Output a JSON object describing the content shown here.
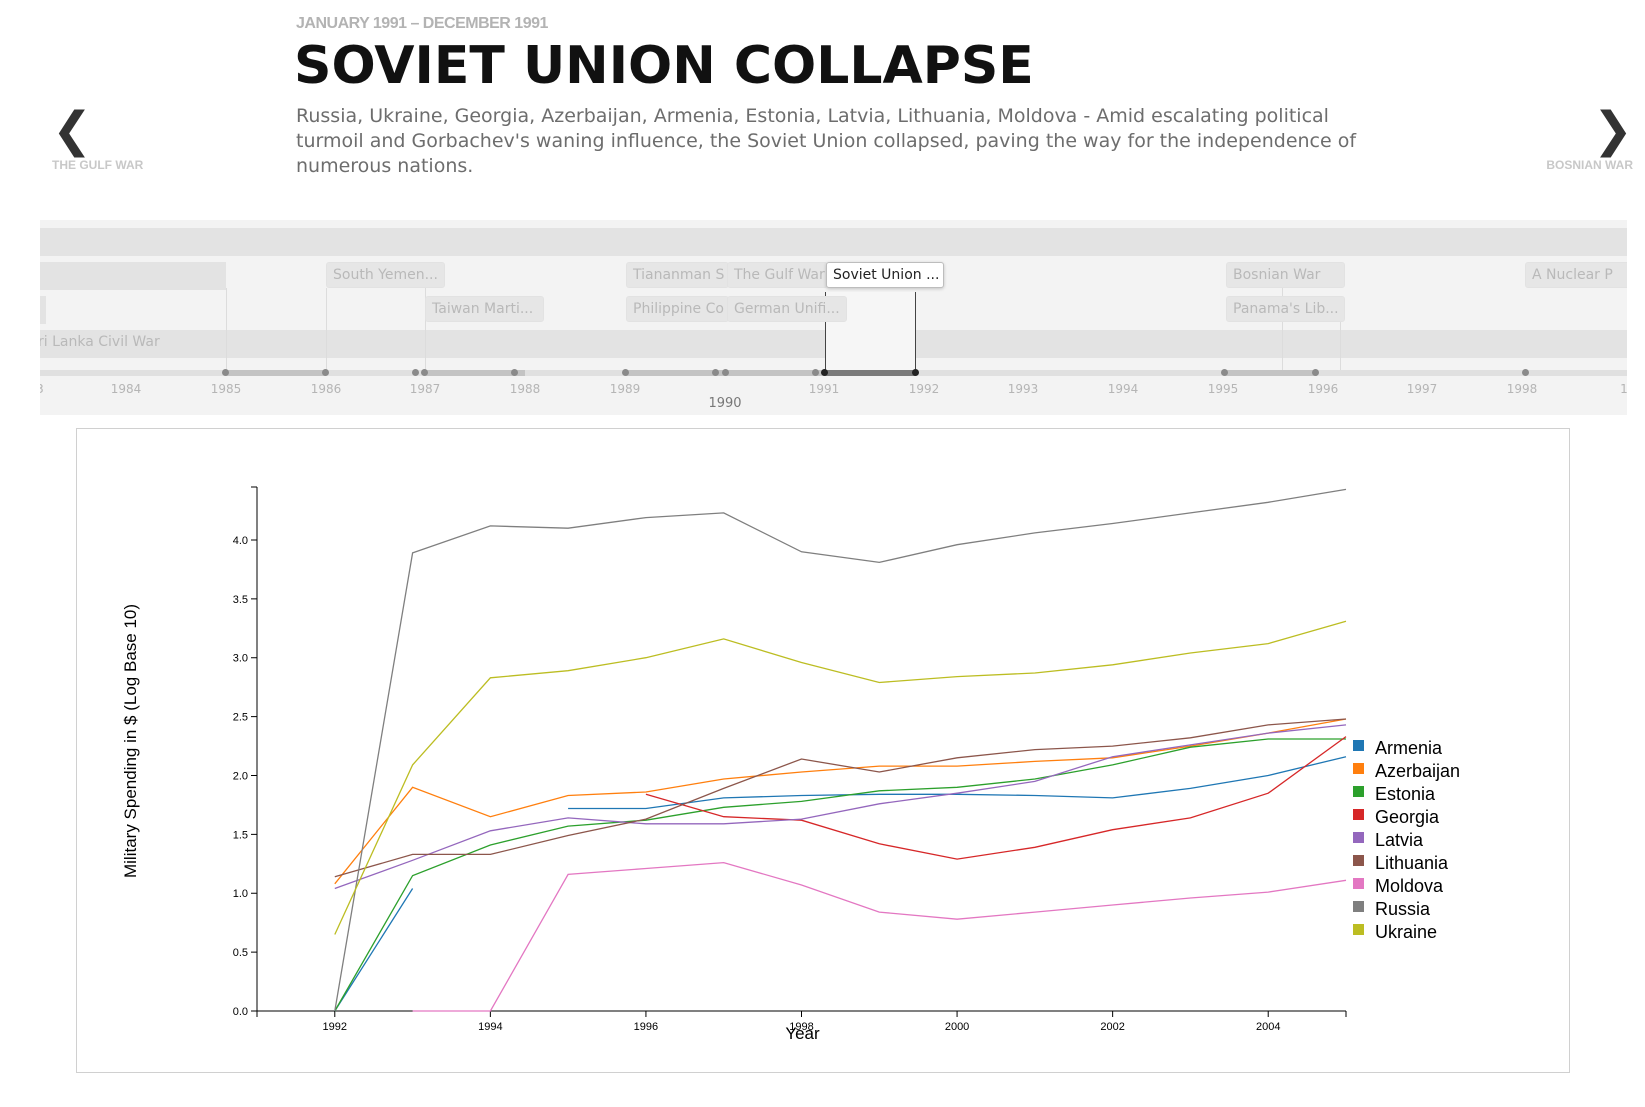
{
  "header": {
    "date_range": "JANUARY 1991 – DECEMBER 1991",
    "title": "SOVIET UNION COLLAPSE",
    "summary": "Russia, Ukraine, Georgia, Azerbaijan, Armenia, Estonia, Latvia, Lithuania, Moldova - Amid escalating political turmoil and Gorbachev's waning influence, the Soviet Union collapsed, paving the way for the independence of numerous nations."
  },
  "nav": {
    "prev_arrow": "❮",
    "prev_label": "THE GULF WAR",
    "next_arrow": "❯",
    "next_label": "BOSNIAN WAR"
  },
  "timeline": {
    "events": [
      {
        "label": "South Yemen..."
      },
      {
        "label": "Taiwan Marti..."
      },
      {
        "label": "Tiananman S"
      },
      {
        "label": "The Gulf War"
      },
      {
        "label": "Soviet Union ..."
      },
      {
        "label": "Philippine Co"
      },
      {
        "label": "German Unifi..."
      },
      {
        "label": "Bosnian War"
      },
      {
        "label": "Panama's Lib..."
      },
      {
        "label": "A Nuclear P"
      }
    ],
    "band_label": "ri Lanka Civil War",
    "years": [
      "1984",
      "1985",
      "1986",
      "1987",
      "1988",
      "1989",
      "1991",
      "1992",
      "1993",
      "1994",
      "1995",
      "1996",
      "1997",
      "1998"
    ],
    "current_year": "1990",
    "partial_year_left": "3",
    "partial_year_right": "1"
  },
  "chart_data": {
    "type": "line",
    "title": "",
    "xlabel": "Year",
    "ylabel": "Military Spending in $ (Log Base 10)",
    "xlim": [
      1991,
      2005
    ],
    "ylim": [
      0,
      4.45
    ],
    "x_ticks": [
      "1992",
      "1994",
      "1996",
      "1998",
      "2000",
      "2002",
      "2004"
    ],
    "y_ticks": [
      "0.0",
      "0.5",
      "1.0",
      "1.5",
      "2.0",
      "2.5",
      "3.0",
      "3.5",
      "4.0"
    ],
    "legend_position": "right",
    "series": [
      {
        "name": "Armenia",
        "color": "#1f77b4",
        "points": [
          [
            1992,
            0.0
          ],
          [
            1993,
            1.04
          ],
          [
            null,
            null
          ],
          [
            1995,
            1.72
          ],
          [
            1996,
            1.72
          ],
          [
            1997,
            1.81
          ],
          [
            1998,
            1.83
          ],
          [
            1999,
            1.84
          ],
          [
            2000,
            1.84
          ],
          [
            2001,
            1.83
          ],
          [
            2002,
            1.81
          ],
          [
            2003,
            1.89
          ],
          [
            2004,
            2.0
          ],
          [
            2005,
            2.16
          ]
        ]
      },
      {
        "name": "Azerbaijan",
        "color": "#ff7f0e",
        "points": [
          [
            1992,
            1.08
          ],
          [
            1993,
            1.9
          ],
          [
            1994,
            1.65
          ],
          [
            1995,
            1.83
          ],
          [
            1996,
            1.86
          ],
          [
            1997,
            1.97
          ],
          [
            1998,
            2.03
          ],
          [
            1999,
            2.08
          ],
          [
            2000,
            2.08
          ],
          [
            2001,
            2.12
          ],
          [
            2002,
            2.15
          ],
          [
            2003,
            2.25
          ],
          [
            2004,
            2.36
          ],
          [
            2005,
            2.48
          ]
        ]
      },
      {
        "name": "Estonia",
        "color": "#2ca02c",
        "points": [
          [
            1992,
            0.0
          ],
          [
            1993,
            1.15
          ],
          [
            1994,
            1.41
          ],
          [
            1995,
            1.57
          ],
          [
            1996,
            1.62
          ],
          [
            1997,
            1.73
          ],
          [
            1998,
            1.78
          ],
          [
            1999,
            1.87
          ],
          [
            2000,
            1.9
          ],
          [
            2001,
            1.97
          ],
          [
            2002,
            2.09
          ],
          [
            2003,
            2.24
          ],
          [
            2004,
            2.31
          ],
          [
            2005,
            2.31
          ]
        ]
      },
      {
        "name": "Georgia",
        "color": "#d62728",
        "points": [
          [
            1996,
            1.84
          ],
          [
            1997,
            1.65
          ],
          [
            1998,
            1.62
          ],
          [
            1999,
            1.42
          ],
          [
            2000,
            1.29
          ],
          [
            2001,
            1.39
          ],
          [
            2002,
            1.54
          ],
          [
            2003,
            1.64
          ],
          [
            2004,
            1.85
          ],
          [
            2005,
            2.33
          ]
        ]
      },
      {
        "name": "Latvia",
        "color": "#9467bd",
        "points": [
          [
            1992,
            1.04
          ],
          [
            1993,
            1.28
          ],
          [
            1994,
            1.53
          ],
          [
            1995,
            1.64
          ],
          [
            1996,
            1.59
          ],
          [
            1997,
            1.59
          ],
          [
            1998,
            1.63
          ],
          [
            1999,
            1.76
          ],
          [
            2000,
            1.85
          ],
          [
            2001,
            1.95
          ],
          [
            2002,
            2.16
          ],
          [
            2003,
            2.26
          ],
          [
            2004,
            2.36
          ],
          [
            2005,
            2.43
          ]
        ]
      },
      {
        "name": "Lithuania",
        "color": "#8c564b",
        "points": [
          [
            1992,
            1.14
          ],
          [
            1993,
            1.33
          ],
          [
            1994,
            1.33
          ],
          [
            1995,
            1.49
          ],
          [
            1996,
            1.63
          ],
          [
            1997,
            1.89
          ],
          [
            1998,
            2.14
          ],
          [
            1999,
            2.03
          ],
          [
            2000,
            2.15
          ],
          [
            2001,
            2.22
          ],
          [
            2002,
            2.25
          ],
          [
            2003,
            2.32
          ],
          [
            2004,
            2.43
          ],
          [
            2005,
            2.48
          ]
        ]
      },
      {
        "name": "Moldova",
        "color": "#e377c2",
        "points": [
          [
            1993,
            0.0
          ],
          [
            1994,
            0.0
          ],
          [
            1995,
            1.16
          ],
          [
            1996,
            1.21
          ],
          [
            1997,
            1.26
          ],
          [
            1998,
            1.07
          ],
          [
            1999,
            0.84
          ],
          [
            2000,
            0.78
          ],
          [
            2001,
            0.84
          ],
          [
            2002,
            0.9
          ],
          [
            2003,
            0.96
          ],
          [
            2004,
            1.01
          ],
          [
            2005,
            1.11
          ]
        ]
      },
      {
        "name": "Russia",
        "color": "#7f7f7f",
        "points": [
          [
            1992,
            0.0
          ],
          [
            1993,
            3.89
          ],
          [
            1994,
            4.12
          ],
          [
            1995,
            4.1
          ],
          [
            1996,
            4.19
          ],
          [
            1997,
            4.23
          ],
          [
            1998,
            3.9
          ],
          [
            1999,
            3.81
          ],
          [
            2000,
            3.96
          ],
          [
            2001,
            4.06
          ],
          [
            2002,
            4.14
          ],
          [
            2003,
            4.23
          ],
          [
            2004,
            4.32
          ],
          [
            2005,
            4.43
          ]
        ]
      },
      {
        "name": "Ukraine",
        "color": "#bcbd22",
        "points": [
          [
            1992,
            0.65
          ],
          [
            1993,
            2.09
          ],
          [
            1994,
            2.83
          ],
          [
            1995,
            2.89
          ],
          [
            1996,
            3.0
          ],
          [
            1997,
            3.16
          ],
          [
            1998,
            2.96
          ],
          [
            1999,
            2.79
          ],
          [
            2000,
            2.84
          ],
          [
            2001,
            2.87
          ],
          [
            2002,
            2.94
          ],
          [
            2003,
            3.04
          ],
          [
            2004,
            3.12
          ],
          [
            2005,
            3.31
          ]
        ]
      }
    ]
  }
}
